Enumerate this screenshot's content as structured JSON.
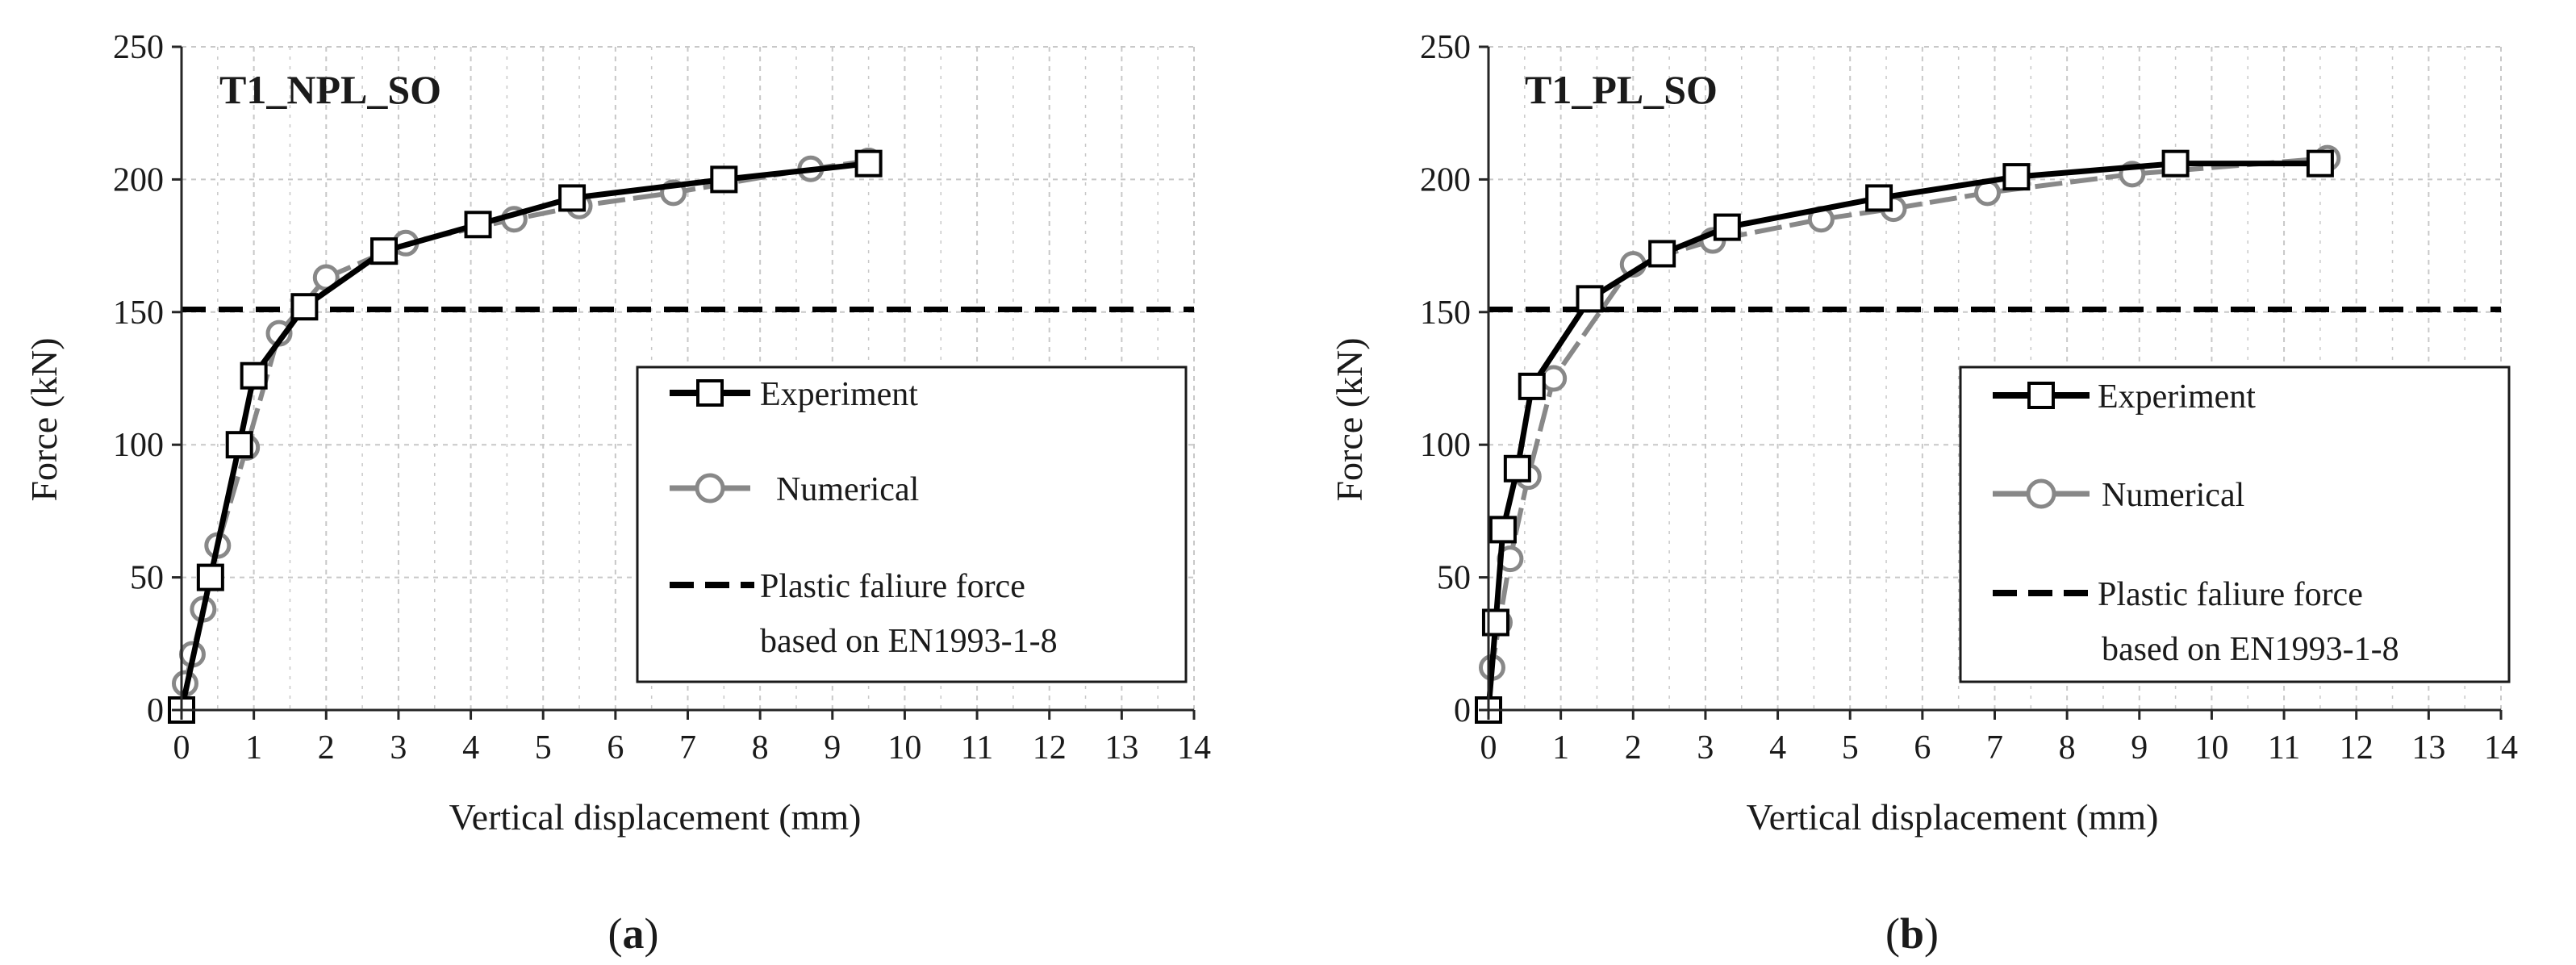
{
  "colors": {
    "experiment": "#000000",
    "numerical": "#888888",
    "plastic": "#000000",
    "grid": "#c8c8c8",
    "axis": "#262626"
  },
  "chart_data": [
    {
      "type": "line",
      "title": "T1_NPL_SO",
      "caption": {
        "open": "(",
        "letter": "a",
        "close": ")"
      },
      "xlabel": "Vertical displacement (mm)",
      "ylabel": "Force (kN)",
      "xlim": [
        0,
        14
      ],
      "ylim": [
        0,
        250
      ],
      "xticks": [
        "0",
        "1",
        "2",
        "3",
        "4",
        "5",
        "6",
        "7",
        "8",
        "9",
        "10",
        "11",
        "12",
        "13",
        "14"
      ],
      "yticks": [
        "0",
        "50",
        "100",
        "150",
        "200",
        "250"
      ],
      "grid": true,
      "legend": {
        "entries": [
          {
            "label": "Experiment"
          },
          {
            "label": "Numerical"
          },
          {
            "label": "Plastic faliure force",
            "label_line2": "based on EN1993-1-8"
          }
        ]
      },
      "series": [
        {
          "name": "Experiment",
          "marker": "square",
          "x": [
            0,
            0.4,
            0.8,
            1.0,
            1.7,
            2.8,
            4.1,
            5.4,
            7.5,
            9.5
          ],
          "y": [
            0,
            50,
            100,
            126,
            152,
            173,
            183,
            193,
            200,
            206
          ]
        },
        {
          "name": "Numerical",
          "marker": "circle",
          "x": [
            0,
            0.05,
            0.15,
            0.3,
            0.5,
            0.9,
            1.35,
            2.0,
            3.1,
            4.6,
            5.5,
            6.8,
            8.7,
            9.5
          ],
          "y": [
            0,
            10,
            21,
            38,
            62,
            99,
            142,
            163,
            176,
            185,
            190,
            195,
            204,
            207
          ]
        },
        {
          "name": "Plastic faliure force",
          "style": "dashed",
          "x": [
            0,
            14
          ],
          "y": [
            151,
            151
          ]
        }
      ]
    },
    {
      "type": "line",
      "title": "T1_PL_SO",
      "caption": {
        "open": "(",
        "letter": "b",
        "close": ")"
      },
      "xlabel": "Vertical displacement (mm)",
      "ylabel": "Force (kN)",
      "xlim": [
        0,
        14
      ],
      "ylim": [
        0,
        250
      ],
      "xticks": [
        "0",
        "1",
        "2",
        "3",
        "4",
        "5",
        "6",
        "7",
        "8",
        "9",
        "10",
        "11",
        "12",
        "13",
        "14"
      ],
      "yticks": [
        "0",
        "50",
        "100",
        "150",
        "200",
        "250"
      ],
      "grid": true,
      "legend": {
        "entries": [
          {
            "label": "Experiment"
          },
          {
            "label": "Numerical"
          },
          {
            "label": "Plastic faliure force",
            "label_line2": "based on EN1993-1-8"
          }
        ]
      },
      "series": [
        {
          "name": "Experiment",
          "marker": "square",
          "x": [
            0,
            0.1,
            0.2,
            0.4,
            0.6,
            1.4,
            2.4,
            3.3,
            5.4,
            7.3,
            9.5,
            11.5
          ],
          "y": [
            0,
            33,
            68,
            91,
            122,
            155,
            172,
            182,
            193,
            201,
            206,
            206
          ]
        },
        {
          "name": "Numerical",
          "marker": "circle",
          "x": [
            0,
            0.05,
            0.15,
            0.3,
            0.55,
            0.9,
            2.0,
            3.1,
            4.6,
            5.6,
            6.9,
            8.9,
            11.6
          ],
          "y": [
            0,
            16,
            33,
            57,
            88,
            125,
            168,
            177,
            185,
            189,
            195,
            202,
            208
          ]
        },
        {
          "name": "Plastic faliure force",
          "style": "dashed",
          "x": [
            0,
            14
          ],
          "y": [
            151,
            151
          ]
        }
      ]
    }
  ]
}
